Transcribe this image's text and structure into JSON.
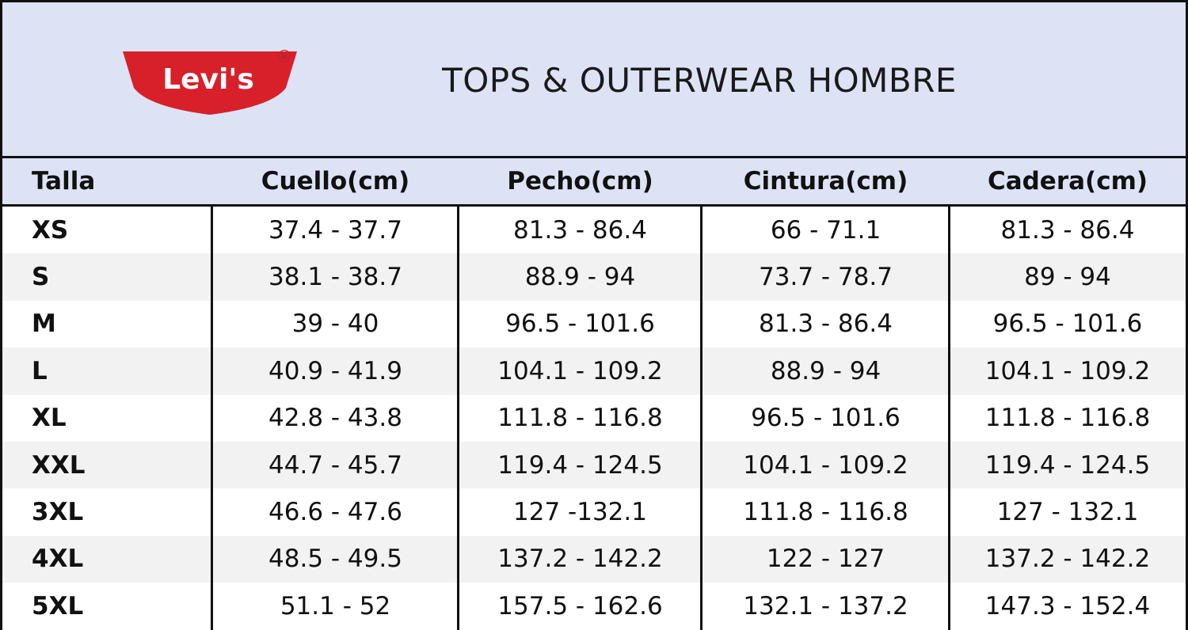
{
  "header": {
    "logo_text": "Levi's",
    "logo_mark": "®",
    "title": "TOPS & OUTERWEAR HOMBRE"
  },
  "table": {
    "columns": [
      "Talla",
      "Cuello(cm)",
      "Pecho(cm)",
      "Cintura(cm)",
      "Cadera(cm)"
    ],
    "rows": [
      [
        "XS",
        "37.4 - 37.7",
        "81.3 - 86.4",
        "66 - 71.1",
        "81.3 - 86.4"
      ],
      [
        "S",
        "38.1 - 38.7",
        "88.9 - 94",
        "73.7 - 78.7",
        "89 - 94"
      ],
      [
        "M",
        "39 - 40",
        "96.5 - 101.6",
        "81.3 - 86.4",
        "96.5 - 101.6"
      ],
      [
        "L",
        "40.9 - 41.9",
        "104.1 - 109.2",
        "88.9 - 94",
        "104.1 - 109.2"
      ],
      [
        "XL",
        "42.8 - 43.8",
        "111.8 - 116.8",
        "96.5 - 101.6",
        "111.8 - 116.8"
      ],
      [
        "XXL",
        "44.7 - 45.7",
        "119.4 - 124.5",
        "104.1 - 109.2",
        "119.4 - 124.5"
      ],
      [
        "3XL",
        "46.6 - 47.6",
        "127 -132.1",
        "111.8 - 116.8",
        "127 - 132.1"
      ],
      [
        "4XL",
        "48.5 - 49.5",
        "137.2 - 142.2",
        "122 - 127",
        "137.2 - 142.2"
      ],
      [
        "5XL",
        "51.1 - 52",
        "157.5 - 162.6",
        "132.1 - 137.2",
        "147.3 - 152.4"
      ]
    ]
  }
}
